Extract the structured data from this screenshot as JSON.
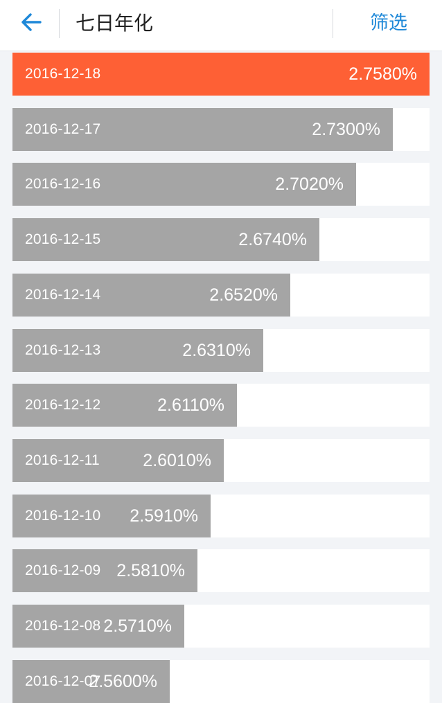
{
  "header": {
    "back_icon": "arrow-left-icon",
    "title": "七日年化",
    "filter_label": "筛选",
    "accent_color": "#1e88d8"
  },
  "colors": {
    "highlight_bar": "#fe6035",
    "bar": "#a5a5a5",
    "row_background": "#ffffff",
    "page_background": "#f2f4f7"
  },
  "rows": [
    {
      "date": "2016-12-18",
      "value_label": "2.7580%",
      "value": 2.758,
      "highlight": true
    },
    {
      "date": "2016-12-17",
      "value_label": "2.7300%",
      "value": 2.73,
      "highlight": false
    },
    {
      "date": "2016-12-16",
      "value_label": "2.7020%",
      "value": 2.702,
      "highlight": false
    },
    {
      "date": "2016-12-15",
      "value_label": "2.6740%",
      "value": 2.674,
      "highlight": false
    },
    {
      "date": "2016-12-14",
      "value_label": "2.6520%",
      "value": 2.652,
      "highlight": false
    },
    {
      "date": "2016-12-13",
      "value_label": "2.6310%",
      "value": 2.631,
      "highlight": false
    },
    {
      "date": "2016-12-12",
      "value_label": "2.6110%",
      "value": 2.611,
      "highlight": false
    },
    {
      "date": "2016-12-11",
      "value_label": "2.6010%",
      "value": 2.601,
      "highlight": false
    },
    {
      "date": "2016-12-10",
      "value_label": "2.5910%",
      "value": 2.591,
      "highlight": false
    },
    {
      "date": "2016-12-09",
      "value_label": "2.5810%",
      "value": 2.581,
      "highlight": false
    },
    {
      "date": "2016-12-08",
      "value_label": "2.5710%",
      "value": 2.571,
      "highlight": false
    },
    {
      "date": "2016-12-07",
      "value_label": "2.5600%",
      "value": 2.56,
      "highlight": false
    }
  ]
}
